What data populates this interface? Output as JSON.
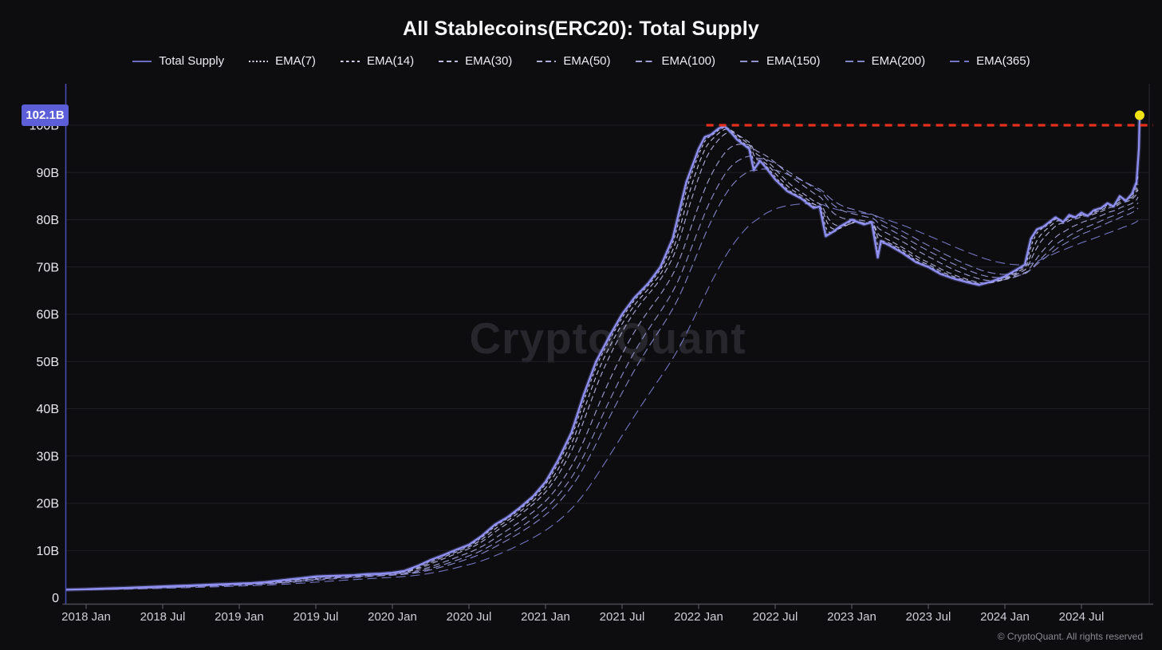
{
  "title": "All Stablecoins(ERC20): Total Supply",
  "watermark": "CryptoQuant",
  "footer": "© CryptoQuant. All rights reserved",
  "badge": {
    "value": "102.1B",
    "color": "#5d5fd8"
  },
  "colors": {
    "background": "#0d0d10",
    "grid": "#1e1e24",
    "left_axis": "#4a4aae",
    "bottom_axis": "#4c4c55",
    "right_border": "#2a2a31",
    "ytick_text": "#e9e9ee",
    "xtick_text": "#cfcfd6",
    "main_line": "#8f8ff2",
    "main_glow": "rgba(130,130,235,0.28)",
    "reference_red": "#e5301d",
    "marker_yellow": "#f2e414"
  },
  "legend": [
    {
      "label": "Total Supply",
      "dash": "",
      "color": "#8f8ff2",
      "marker_color": "#6b6bc4"
    },
    {
      "label": "EMA(7)",
      "dash": "2 2.5",
      "color": "#dcdcec",
      "marker_color": "#dcdcec"
    },
    {
      "label": "EMA(14)",
      "dash": "3.5 3.5",
      "color": "#cdcde6",
      "marker_color": "#cdcde6"
    },
    {
      "label": "EMA(30)",
      "dash": "6 4",
      "color": "#bdbde0",
      "marker_color": "#bdbde0"
    },
    {
      "label": "EMA(50)",
      "dash": "7 4",
      "color": "#aeaeda",
      "marker_color": "#aeaeda"
    },
    {
      "label": "EMA(100)",
      "dash": "8 4.5",
      "color": "#9f9fd4",
      "marker_color": "#9f9fd4"
    },
    {
      "label": "EMA(150)",
      "dash": "9 5",
      "color": "#9191ce",
      "marker_color": "#9191ce"
    },
    {
      "label": "EMA(200)",
      "dash": "10 5",
      "color": "#8484c8",
      "marker_color": "#8484c8"
    },
    {
      "label": "EMA(365)",
      "dash": "12 6",
      "color": "#7474c0",
      "marker_color": "#7474c0"
    }
  ],
  "chart_data": {
    "type": "line",
    "title": "All Stablecoins(ERC20): Total Supply",
    "xlabel": "",
    "ylabel": "",
    "unit": "billions (USD)",
    "ylim": [
      0,
      105
    ],
    "xlim": [
      2017.87,
      2024.94
    ],
    "grid": true,
    "legend_position": "top",
    "yticks": [
      {
        "v": 0,
        "label": "0"
      },
      {
        "v": 10,
        "label": "10B"
      },
      {
        "v": 20,
        "label": "20B"
      },
      {
        "v": 30,
        "label": "30B"
      },
      {
        "v": 40,
        "label": "40B"
      },
      {
        "v": 50,
        "label": "50B"
      },
      {
        "v": 60,
        "label": "60B"
      },
      {
        "v": 70,
        "label": "70B"
      },
      {
        "v": 80,
        "label": "80B"
      },
      {
        "v": 90,
        "label": "90B"
      },
      {
        "v": 100,
        "label": "100B"
      }
    ],
    "xticks": [
      {
        "t": 2018.0,
        "label": "2018 Jan"
      },
      {
        "t": 2018.5,
        "label": "2018 Jul"
      },
      {
        "t": 2019.0,
        "label": "2019 Jan"
      },
      {
        "t": 2019.5,
        "label": "2019 Jul"
      },
      {
        "t": 2020.0,
        "label": "2020 Jan"
      },
      {
        "t": 2020.5,
        "label": "2020 Jul"
      },
      {
        "t": 2021.0,
        "label": "2021 Jan"
      },
      {
        "t": 2021.5,
        "label": "2021 Jul"
      },
      {
        "t": 2022.0,
        "label": "2022 Jan"
      },
      {
        "t": 2022.5,
        "label": "2022 Jul"
      },
      {
        "t": 2023.0,
        "label": "2023 Jan"
      },
      {
        "t": 2023.5,
        "label": "2023 Jul"
      },
      {
        "t": 2024.0,
        "label": "2024 Jan"
      },
      {
        "t": 2024.5,
        "label": "2024 Jul"
      }
    ],
    "total_supply": [
      [
        2017.87,
        1.7
      ],
      [
        2018.0,
        1.8
      ],
      [
        2018.08,
        1.9
      ],
      [
        2018.17,
        2.0
      ],
      [
        2018.25,
        2.1
      ],
      [
        2018.33,
        2.2
      ],
      [
        2018.42,
        2.3
      ],
      [
        2018.5,
        2.4
      ],
      [
        2018.58,
        2.5
      ],
      [
        2018.67,
        2.6
      ],
      [
        2018.75,
        2.7
      ],
      [
        2018.83,
        2.8
      ],
      [
        2018.92,
        2.9
      ],
      [
        2019.0,
        3.0
      ],
      [
        2019.08,
        3.1
      ],
      [
        2019.17,
        3.3
      ],
      [
        2019.25,
        3.6
      ],
      [
        2019.33,
        3.9
      ],
      [
        2019.42,
        4.2
      ],
      [
        2019.5,
        4.5
      ],
      [
        2019.58,
        4.6
      ],
      [
        2019.67,
        4.7
      ],
      [
        2019.75,
        4.8
      ],
      [
        2019.83,
        5.0
      ],
      [
        2019.92,
        5.1
      ],
      [
        2020.0,
        5.3
      ],
      [
        2020.08,
        5.7
      ],
      [
        2020.17,
        6.8
      ],
      [
        2020.25,
        8.0
      ],
      [
        2020.33,
        9.0
      ],
      [
        2020.42,
        10.2
      ],
      [
        2020.5,
        11.2
      ],
      [
        2020.58,
        13.0
      ],
      [
        2020.67,
        15.5
      ],
      [
        2020.75,
        17.0
      ],
      [
        2020.83,
        19.0
      ],
      [
        2020.92,
        21.5
      ],
      [
        2021.0,
        24.5
      ],
      [
        2021.08,
        29.0
      ],
      [
        2021.17,
        35.0
      ],
      [
        2021.25,
        43.0
      ],
      [
        2021.33,
        50.0
      ],
      [
        2021.42,
        55.5
      ],
      [
        2021.5,
        60.0
      ],
      [
        2021.58,
        63.5
      ],
      [
        2021.67,
        66.5
      ],
      [
        2021.75,
        70.0
      ],
      [
        2021.83,
        76.0
      ],
      [
        2021.92,
        88.0
      ],
      [
        2022.0,
        95.0
      ],
      [
        2022.04,
        97.5
      ],
      [
        2022.08,
        98.0
      ],
      [
        2022.13,
        99.3
      ],
      [
        2022.17,
        99.8
      ],
      [
        2022.21,
        98.5
      ],
      [
        2022.25,
        97.0
      ],
      [
        2022.29,
        96.0
      ],
      [
        2022.33,
        95.0
      ],
      [
        2022.36,
        90.5
      ],
      [
        2022.4,
        92.5
      ],
      [
        2022.44,
        91.0
      ],
      [
        2022.5,
        88.5
      ],
      [
        2022.58,
        86.0
      ],
      [
        2022.67,
        84.5
      ],
      [
        2022.71,
        83.5
      ],
      [
        2022.75,
        82.5
      ],
      [
        2022.79,
        82.8
      ],
      [
        2022.83,
        76.5
      ],
      [
        2022.88,
        77.5
      ],
      [
        2022.92,
        78.5
      ],
      [
        2023.0,
        80.0
      ],
      [
        2023.04,
        79.5
      ],
      [
        2023.08,
        79.0
      ],
      [
        2023.13,
        79.5
      ],
      [
        2023.17,
        72.0
      ],
      [
        2023.19,
        75.5
      ],
      [
        2023.25,
        74.5
      ],
      [
        2023.33,
        73.0
      ],
      [
        2023.42,
        71.0
      ],
      [
        2023.5,
        70.0
      ],
      [
        2023.58,
        68.5
      ],
      [
        2023.67,
        67.5
      ],
      [
        2023.75,
        66.8
      ],
      [
        2023.83,
        66.2
      ],
      [
        2023.92,
        67.0
      ],
      [
        2024.0,
        68.0
      ],
      [
        2024.08,
        69.5
      ],
      [
        2024.13,
        70.5
      ],
      [
        2024.17,
        76.0
      ],
      [
        2024.21,
        78.0
      ],
      [
        2024.25,
        78.5
      ],
      [
        2024.29,
        79.5
      ],
      [
        2024.33,
        80.5
      ],
      [
        2024.38,
        79.5
      ],
      [
        2024.42,
        81.0
      ],
      [
        2024.46,
        80.5
      ],
      [
        2024.5,
        81.5
      ],
      [
        2024.54,
        80.8
      ],
      [
        2024.58,
        82.0
      ],
      [
        2024.63,
        82.5
      ],
      [
        2024.67,
        83.5
      ],
      [
        2024.71,
        82.8
      ],
      [
        2024.75,
        85.0
      ],
      [
        2024.79,
        84.0
      ],
      [
        2024.83,
        85.5
      ],
      [
        2024.86,
        88.0
      ],
      [
        2024.875,
        95.0
      ],
      [
        2024.88,
        102.1
      ]
    ],
    "ema_periods_days": [
      365,
      200,
      150,
      100,
      50,
      30,
      14,
      7
    ],
    "reference_line": {
      "value": 100,
      "style": "dashed",
      "color": "#e5301d",
      "start_t": 2022.05
    },
    "last_point": {
      "t": 2024.88,
      "value": 102.1,
      "label": "102.1B",
      "marker": "yellow-dot"
    }
  }
}
